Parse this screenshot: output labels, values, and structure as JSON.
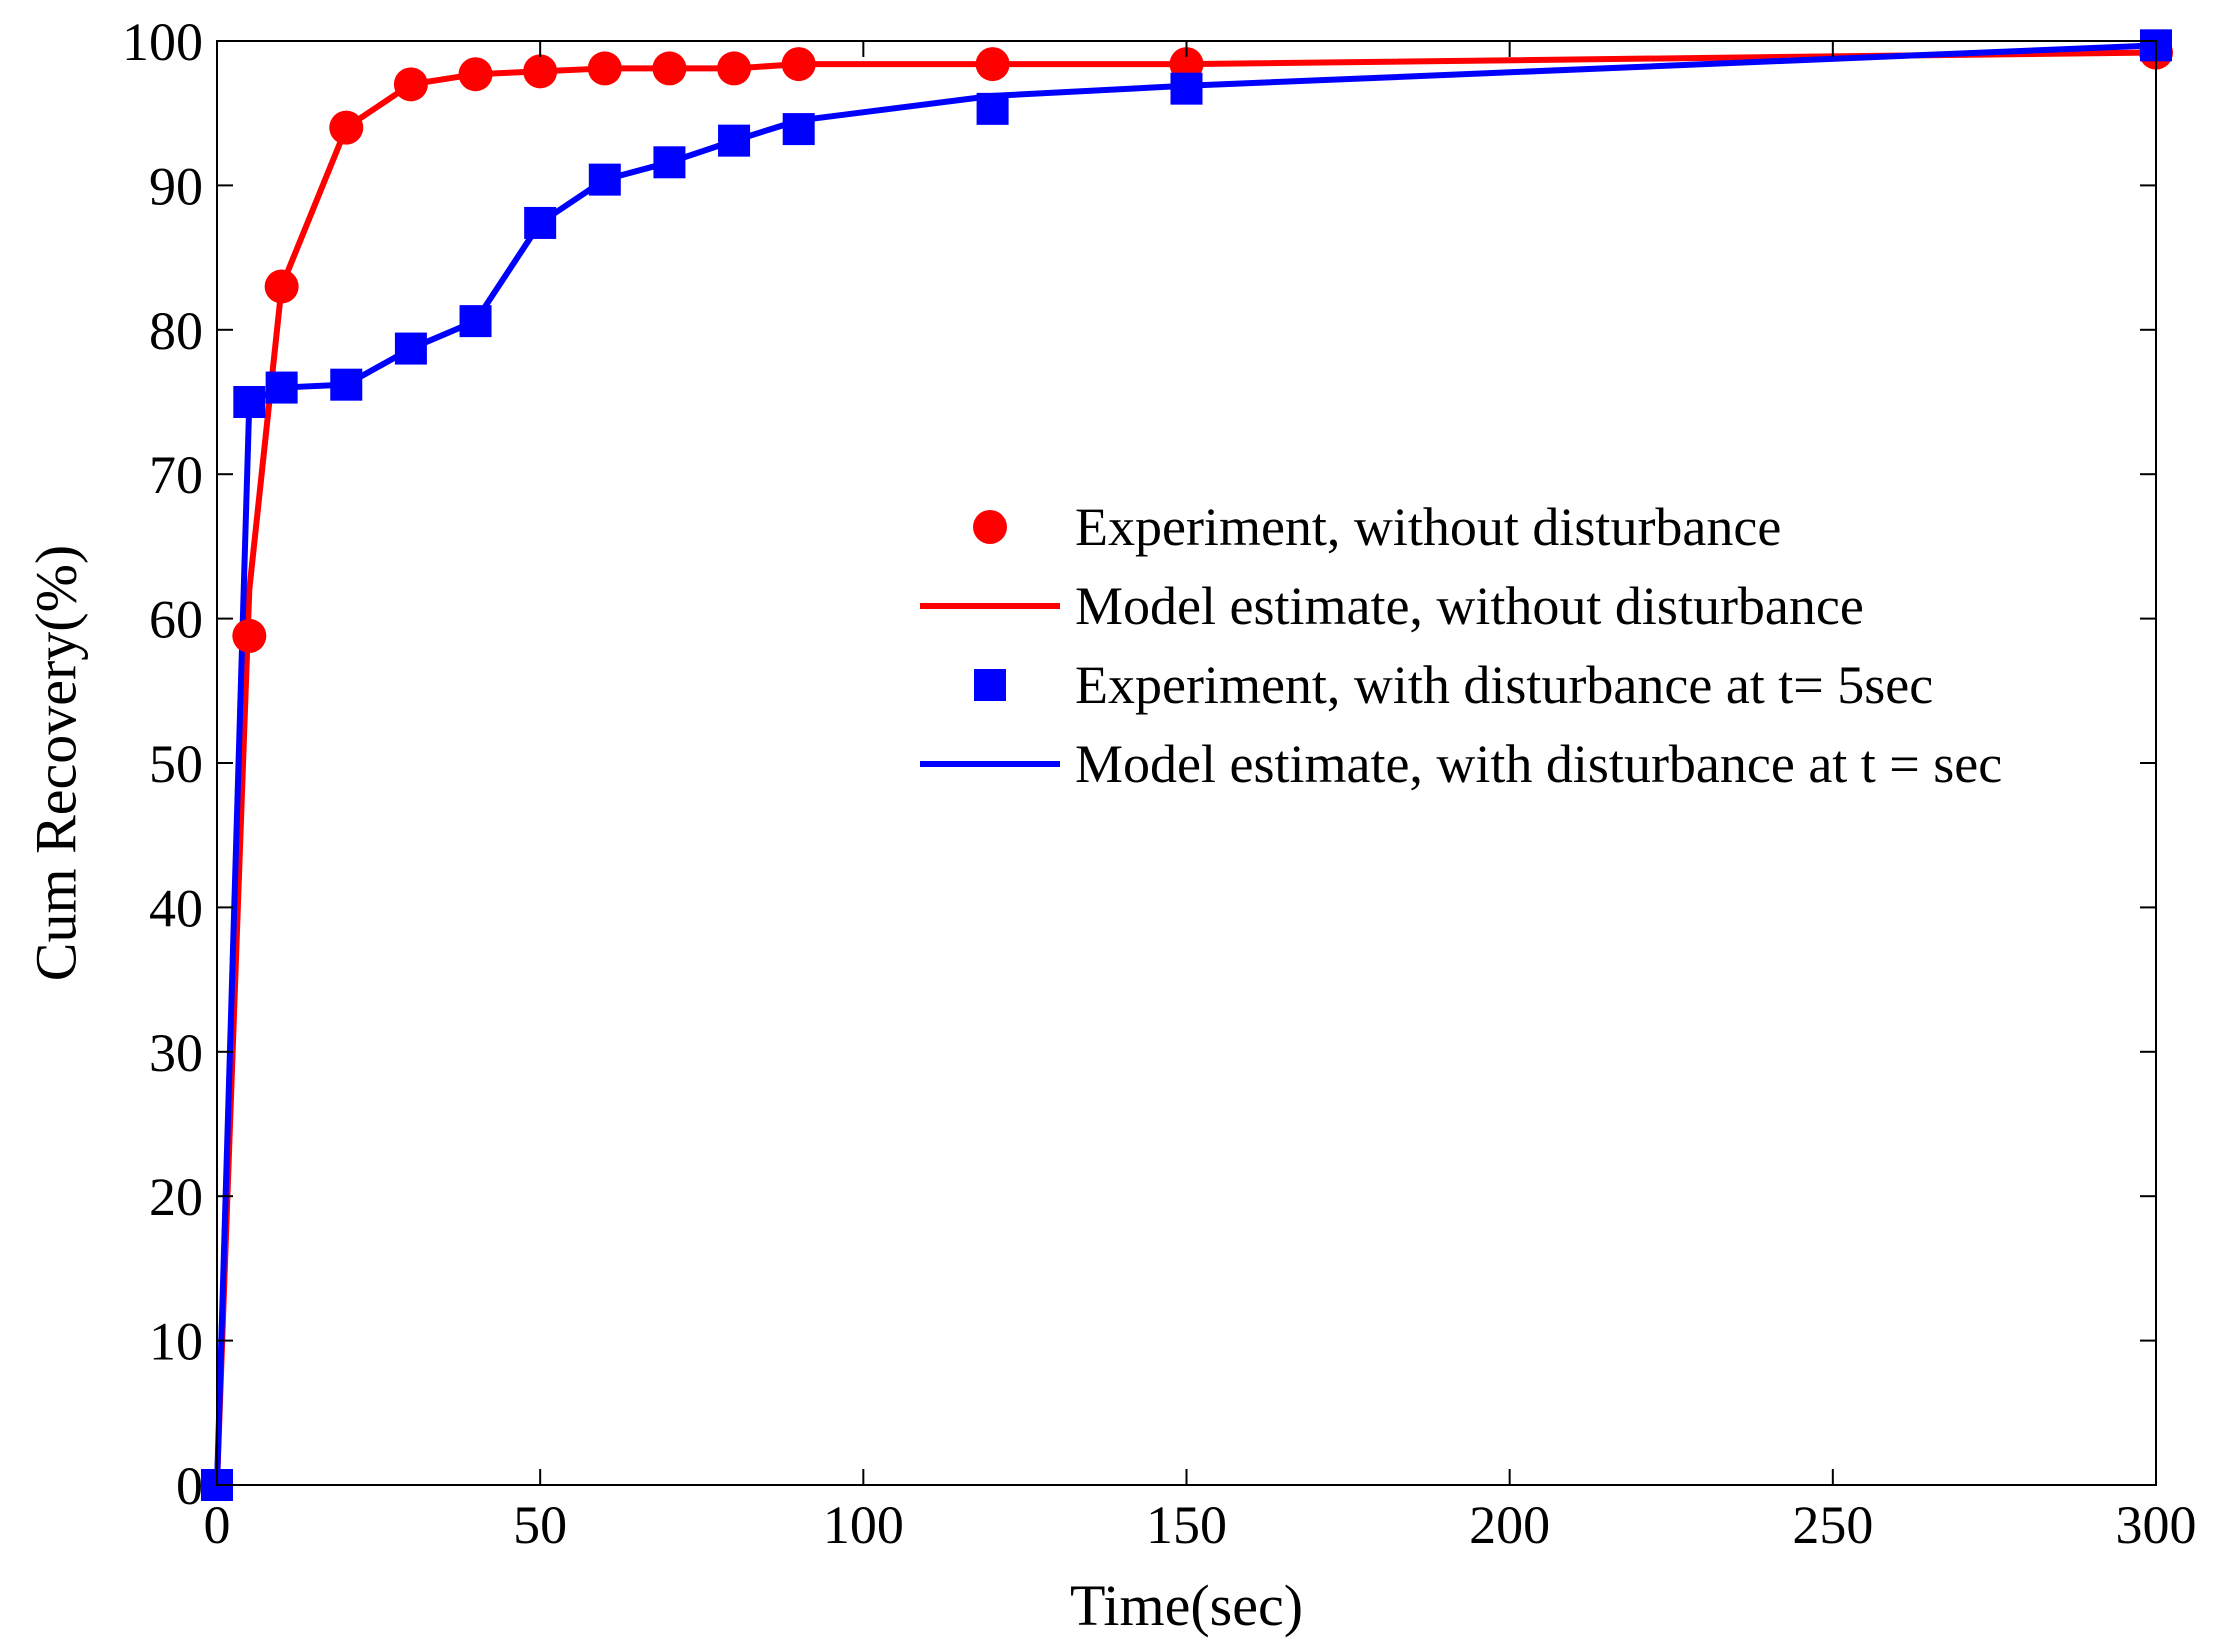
{
  "chart_data": {
    "type": "line",
    "title": "",
    "xlabel": "Time(sec)",
    "ylabel": "Cum Recovery(%)",
    "xlim": [
      0,
      300
    ],
    "ylim": [
      0,
      100
    ],
    "xticks": [
      0,
      50,
      100,
      150,
      200,
      250,
      300
    ],
    "yticks": [
      0,
      10,
      20,
      30,
      40,
      50,
      60,
      70,
      80,
      90,
      100
    ],
    "xtick_labels": [
      "0",
      "50",
      "100",
      "150",
      "200",
      "250",
      "300"
    ],
    "ytick_labels": [
      "0",
      "10",
      "20",
      "30",
      "40",
      "50",
      "60",
      "70",
      "80",
      "90",
      "100"
    ],
    "grid": false,
    "legend_position": "center-right",
    "series": [
      {
        "name": "Experiment, without disturbance",
        "style": "marker-circle",
        "color": "#ff0000",
        "x": [
          5,
          10,
          20,
          30,
          40,
          50,
          60,
          70,
          80,
          90,
          120,
          150,
          300
        ],
        "y": [
          58.8,
          83,
          94,
          97,
          97.7,
          97.9,
          98.1,
          98.1,
          98.1,
          98.4,
          98.4,
          98.4,
          99.2
        ]
      },
      {
        "name": "Model estimate, without disturbance",
        "style": "line",
        "color": "#ff0000",
        "x": [
          0,
          5,
          10,
          20,
          30,
          40,
          50,
          60,
          70,
          80,
          90,
          120,
          150,
          300
        ],
        "y": [
          0,
          62,
          83,
          94,
          97,
          97.7,
          97.9,
          98.1,
          98.1,
          98.1,
          98.4,
          98.4,
          98.4,
          99.2
        ]
      },
      {
        "name": "Experiment, with disturbance at t= 5sec",
        "style": "marker-square",
        "color": "#0000ff",
        "x": [
          0,
          5,
          10,
          20,
          30,
          40,
          50,
          60,
          70,
          80,
          90,
          120,
          150,
          300
        ],
        "y": [
          0,
          75,
          76,
          76.2,
          78.7,
          80.6,
          87.4,
          90.4,
          91.6,
          93.1,
          93.9,
          95.3,
          96.7,
          99.7
        ]
      },
      {
        "name": "Model estimate, with disturbance at t = sec",
        "style": "line",
        "color": "#0000ff",
        "x": [
          0,
          5,
          10,
          20,
          30,
          40,
          50,
          60,
          70,
          80,
          90,
          120,
          150,
          300
        ],
        "y": [
          0,
          75,
          76,
          76.2,
          78.7,
          80.6,
          87.4,
          90.4,
          91.6,
          93.1,
          94.5,
          96.2,
          96.9,
          99.7
        ]
      }
    ]
  }
}
